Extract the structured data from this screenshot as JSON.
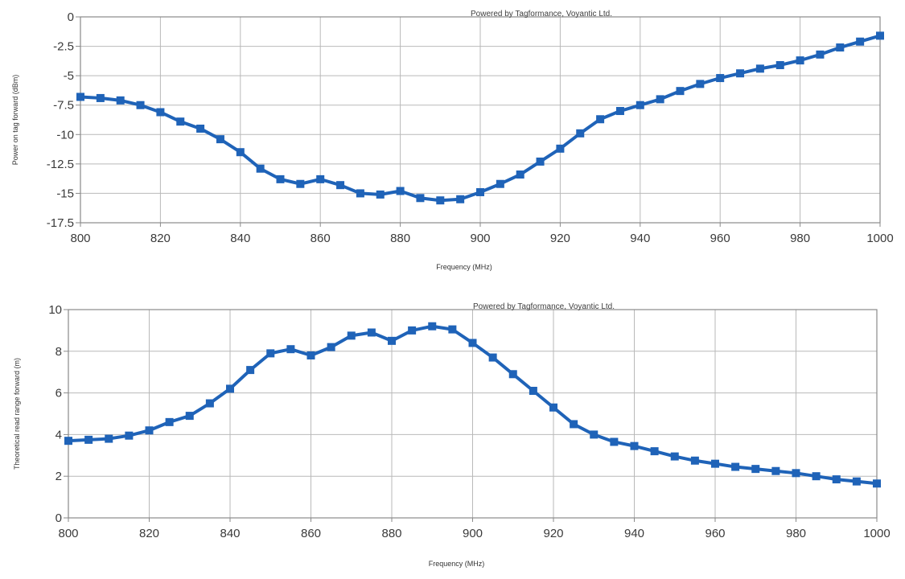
{
  "colors": {
    "series": "#1f63b8",
    "grid": "#b9b9b9",
    "frame": "#8a8a8a",
    "background": "#ffffff"
  },
  "chart_data": [
    {
      "type": "line",
      "watermark": "Powered by Tagformance, Voyantic Ltd.",
      "xlabel": "Frequency (MHz)",
      "ylabel": "Power on tag forward (dBm)",
      "xlim": [
        800,
        1000
      ],
      "ylim": [
        -17.5,
        0
      ],
      "x_ticks": [
        800,
        820,
        840,
        860,
        880,
        900,
        920,
        940,
        960,
        980,
        1000
      ],
      "y_ticks": [
        0,
        -2.5,
        -5,
        -7.5,
        -10,
        -12.5,
        -15,
        -17.5
      ],
      "x_tick_labels": [
        "800",
        "820",
        "840",
        "860",
        "880",
        "900",
        "920",
        "940",
        "960",
        "980",
        "1000"
      ],
      "y_tick_labels": [
        "0",
        "-2.5",
        "-5",
        "-7.5",
        "-10",
        "-12.5",
        "-15",
        "-17.5"
      ],
      "grid": true,
      "marker": "square",
      "x": [
        800,
        805,
        810,
        815,
        820,
        825,
        830,
        835,
        840,
        845,
        850,
        855,
        860,
        865,
        870,
        875,
        880,
        885,
        890,
        895,
        900,
        905,
        910,
        915,
        920,
        925,
        930,
        935,
        940,
        945,
        950,
        955,
        960,
        965,
        970,
        975,
        980,
        985,
        990,
        995,
        1000
      ],
      "y": [
        -6.8,
        -6.9,
        -7.1,
        -7.5,
        -8.1,
        -8.9,
        -9.5,
        -10.4,
        -11.5,
        -12.9,
        -13.8,
        -14.2,
        -13.8,
        -14.3,
        -15.0,
        -15.1,
        -14.8,
        -15.4,
        -15.6,
        -15.5,
        -14.9,
        -14.2,
        -13.4,
        -12.3,
        -11.2,
        -9.9,
        -8.7,
        -8.0,
        -7.5,
        -7.0,
        -6.3,
        -5.7,
        -5.2,
        -4.8,
        -4.4,
        -4.1,
        -3.7,
        -3.2,
        -2.6,
        -2.1,
        -1.6
      ]
    },
    {
      "type": "line",
      "watermark": "Powered by Tagformance, Voyantic Ltd.",
      "xlabel": "Frequency (MHz)",
      "ylabel": "Theoretical read range forward (m)",
      "xlim": [
        800,
        1000
      ],
      "ylim": [
        0,
        10
      ],
      "x_ticks": [
        800,
        820,
        840,
        860,
        880,
        900,
        920,
        940,
        960,
        980,
        1000
      ],
      "y_ticks": [
        0,
        2,
        4,
        6,
        8,
        10
      ],
      "x_tick_labels": [
        "800",
        "820",
        "840",
        "860",
        "880",
        "900",
        "920",
        "940",
        "960",
        "980",
        "1000"
      ],
      "y_tick_labels": [
        "0",
        "2",
        "4",
        "6",
        "8",
        "10"
      ],
      "grid": true,
      "marker": "square",
      "x": [
        800,
        805,
        810,
        815,
        820,
        825,
        830,
        835,
        840,
        845,
        850,
        855,
        860,
        865,
        870,
        875,
        880,
        885,
        890,
        895,
        900,
        905,
        910,
        915,
        920,
        925,
        930,
        935,
        940,
        945,
        950,
        955,
        960,
        965,
        970,
        975,
        980,
        985,
        990,
        995,
        1000
      ],
      "y": [
        3.7,
        3.75,
        3.8,
        3.95,
        4.2,
        4.6,
        4.9,
        5.5,
        6.2,
        7.1,
        7.9,
        8.1,
        7.8,
        8.2,
        8.75,
        8.9,
        8.5,
        9.0,
        9.2,
        9.05,
        8.4,
        7.7,
        6.9,
        6.1,
        5.3,
        4.5,
        4.0,
        3.65,
        3.45,
        3.2,
        2.95,
        2.75,
        2.6,
        2.45,
        2.35,
        2.25,
        2.15,
        2.0,
        1.85,
        1.75,
        1.65
      ]
    }
  ]
}
